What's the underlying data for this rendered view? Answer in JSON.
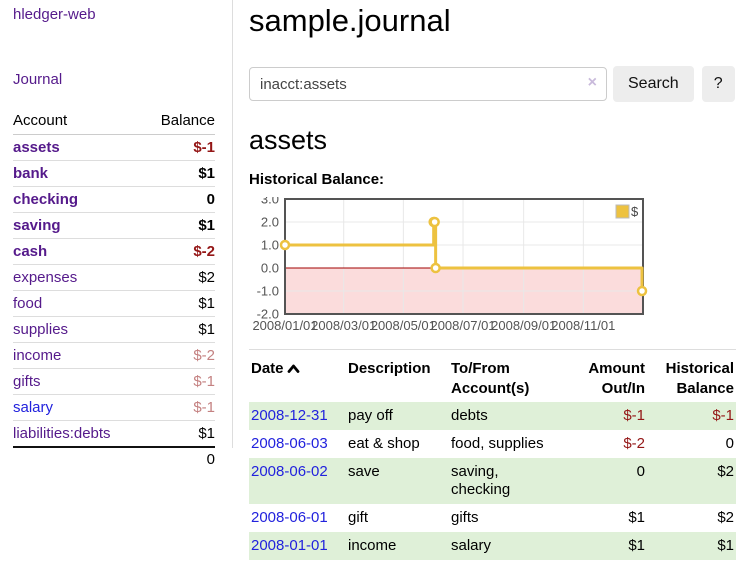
{
  "sidebar": {
    "brand": "hledger-web",
    "nav_journal": "Journal",
    "accounts": {
      "header_account": "Account",
      "header_balance": "Balance",
      "rows": [
        {
          "account": "assets",
          "balance": "$-1",
          "level": 1,
          "bold": true,
          "balance_class": "neg",
          "link_class": ""
        },
        {
          "account": "bank",
          "balance": "$1",
          "level": 2,
          "bold": true,
          "balance_class": "",
          "link_class": ""
        },
        {
          "account": "checking",
          "balance": "0",
          "level": 3,
          "bold": true,
          "balance_class": "",
          "link_class": ""
        },
        {
          "account": "saving",
          "balance": "$1",
          "level": 3,
          "bold": true,
          "balance_class": "",
          "link_class": ""
        },
        {
          "account": "cash",
          "balance": "$-2",
          "level": 2,
          "bold": true,
          "balance_class": "neg",
          "link_class": ""
        },
        {
          "account": "expenses",
          "balance": "$2",
          "level": 1,
          "bold": false,
          "balance_class": "",
          "link_class": ""
        },
        {
          "account": "food",
          "balance": "$1",
          "level": 2,
          "bold": false,
          "balance_class": "",
          "link_class": ""
        },
        {
          "account": "supplies",
          "balance": "$1",
          "level": 2,
          "bold": false,
          "balance_class": "",
          "link_class": ""
        },
        {
          "account": "income",
          "balance": "$-2",
          "level": 1,
          "bold": false,
          "balance_class": "neg-muted",
          "link_class": ""
        },
        {
          "account": "gifts",
          "balance": "$-1",
          "level": 2,
          "bold": false,
          "balance_class": "neg-muted",
          "link_class": ""
        },
        {
          "account": "salary",
          "balance": "$-1",
          "level": 2,
          "bold": false,
          "balance_class": "neg-muted",
          "link_class": "blue"
        },
        {
          "account": "liabilities:debts",
          "balance": "$1",
          "level": 1,
          "bold": false,
          "balance_class": "",
          "link_class": ""
        }
      ],
      "total": "0"
    }
  },
  "header": {
    "title": "sample.journal"
  },
  "search": {
    "value": "inacct:assets",
    "clear_icon": "×",
    "button_label": "Search",
    "help_label": "?"
  },
  "account_page": {
    "title": "assets",
    "chart_label": "Historical Balance:"
  },
  "register": {
    "headers": {
      "date": "Date",
      "description": "Description",
      "accounts": "To/From Account(s)",
      "amount": "Amount Out/In",
      "balance": "Historical Balance"
    },
    "sort": "date ascending",
    "rows": [
      {
        "date": "2008-12-31",
        "description": "pay off",
        "accounts": "debts",
        "amount": "$-1",
        "amount_class": "neg",
        "balance": "$-1",
        "balance_class": "neg"
      },
      {
        "date": "2008-06-03",
        "description": "eat & shop",
        "accounts": "food, supplies",
        "amount": "$-2",
        "amount_class": "neg",
        "balance": "0",
        "balance_class": ""
      },
      {
        "date": "2008-06-02",
        "description": "save",
        "accounts": "saving,\nchecking",
        "amount": "0",
        "amount_class": "",
        "balance": "$2",
        "balance_class": ""
      },
      {
        "date": "2008-06-01",
        "description": "gift",
        "accounts": "gifts",
        "amount": "$1",
        "amount_class": "",
        "balance": "$2",
        "balance_class": ""
      },
      {
        "date": "2008-01-01",
        "description": "income",
        "accounts": "salary",
        "amount": "$1",
        "amount_class": "",
        "balance": "$1",
        "balance_class": ""
      }
    ]
  },
  "chart_data": {
    "type": "line",
    "style": "step",
    "title": "Historical Balance:",
    "x_range": [
      "2008-01-01",
      "2009-01-01"
    ],
    "ylim": [
      -2,
      3
    ],
    "y_ticks": [
      3,
      2,
      1,
      0,
      -1,
      -2
    ],
    "x_ticks": [
      {
        "date": "2008-01-01",
        "label": "2008/01/01"
      },
      {
        "date": "2008-03-01",
        "label": "2008/03/01"
      },
      {
        "date": "2008-05-01",
        "label": "2008/05/01"
      },
      {
        "date": "2008-07-01",
        "label": "2008/07/01"
      },
      {
        "date": "2008-09-01",
        "label": "2008/09/01"
      },
      {
        "date": "2008-11-01",
        "label": "2008/11/01"
      }
    ],
    "series": [
      {
        "name": "$",
        "color": "#edc240",
        "points": [
          [
            "2008-01-01",
            1
          ],
          [
            "2008-06-01",
            2
          ],
          [
            "2008-06-02",
            2
          ],
          [
            "2008-06-03",
            0
          ],
          [
            "2008-12-31",
            -1
          ]
        ]
      }
    ],
    "legend_position": "top-right",
    "grid": true,
    "colors": {
      "negative_region": "#fbdcdc",
      "zero_line": "#a00000",
      "grid": "#e8e8e8",
      "border": "#545454"
    }
  },
  "colors": {
    "accent_purple": "#551a8b",
    "link_blue": "#2222dd",
    "negative": "#941616",
    "negative_muted": "#c48181",
    "row_stripe_green": "#dff0d8",
    "chart_line_yellow": "#edc240"
  }
}
